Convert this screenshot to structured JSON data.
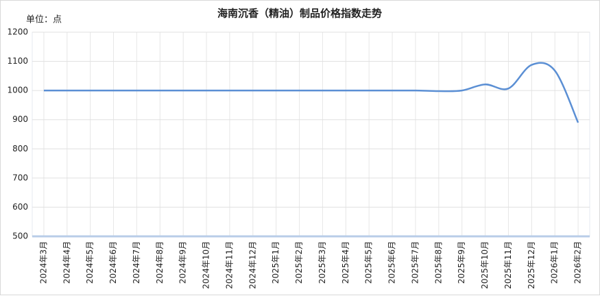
{
  "chart_data": {
    "type": "line",
    "title": "海南沉香（精油）制品价格指数走势",
    "y_unit_label": "单位：点",
    "categories": [
      "2024年3月",
      "2024年4月",
      "2024年5月",
      "2024年6月",
      "2024年7月",
      "2024年8月",
      "2024年9月",
      "2024年10月",
      "2024年11月",
      "2024年12月",
      "2025年1月",
      "2025年2月",
      "2025年3月",
      "2025年4月",
      "2025年5月",
      "2025年6月",
      "2025年7月",
      "2025年8月",
      "2025年9月",
      "2025年10月",
      "2025年11月",
      "2025年12月",
      "2026年1月",
      "2026年2月"
    ],
    "series": [
      {
        "name": "价格指数",
        "color": "#5b8fd4",
        "values": [
          1000,
          1000,
          1000,
          1000,
          1000,
          1000,
          1000,
          1000,
          1000,
          1000,
          1000,
          1000,
          1000,
          1000,
          1000,
          1000,
          1000,
          998,
          1000,
          1021,
          1007,
          1088,
          1068,
          890
        ]
      }
    ],
    "ylim": [
      500,
      1200
    ],
    "yticks": [
      500,
      600,
      700,
      800,
      900,
      1000,
      1100,
      1200
    ],
    "grid": true,
    "smooth": true
  }
}
